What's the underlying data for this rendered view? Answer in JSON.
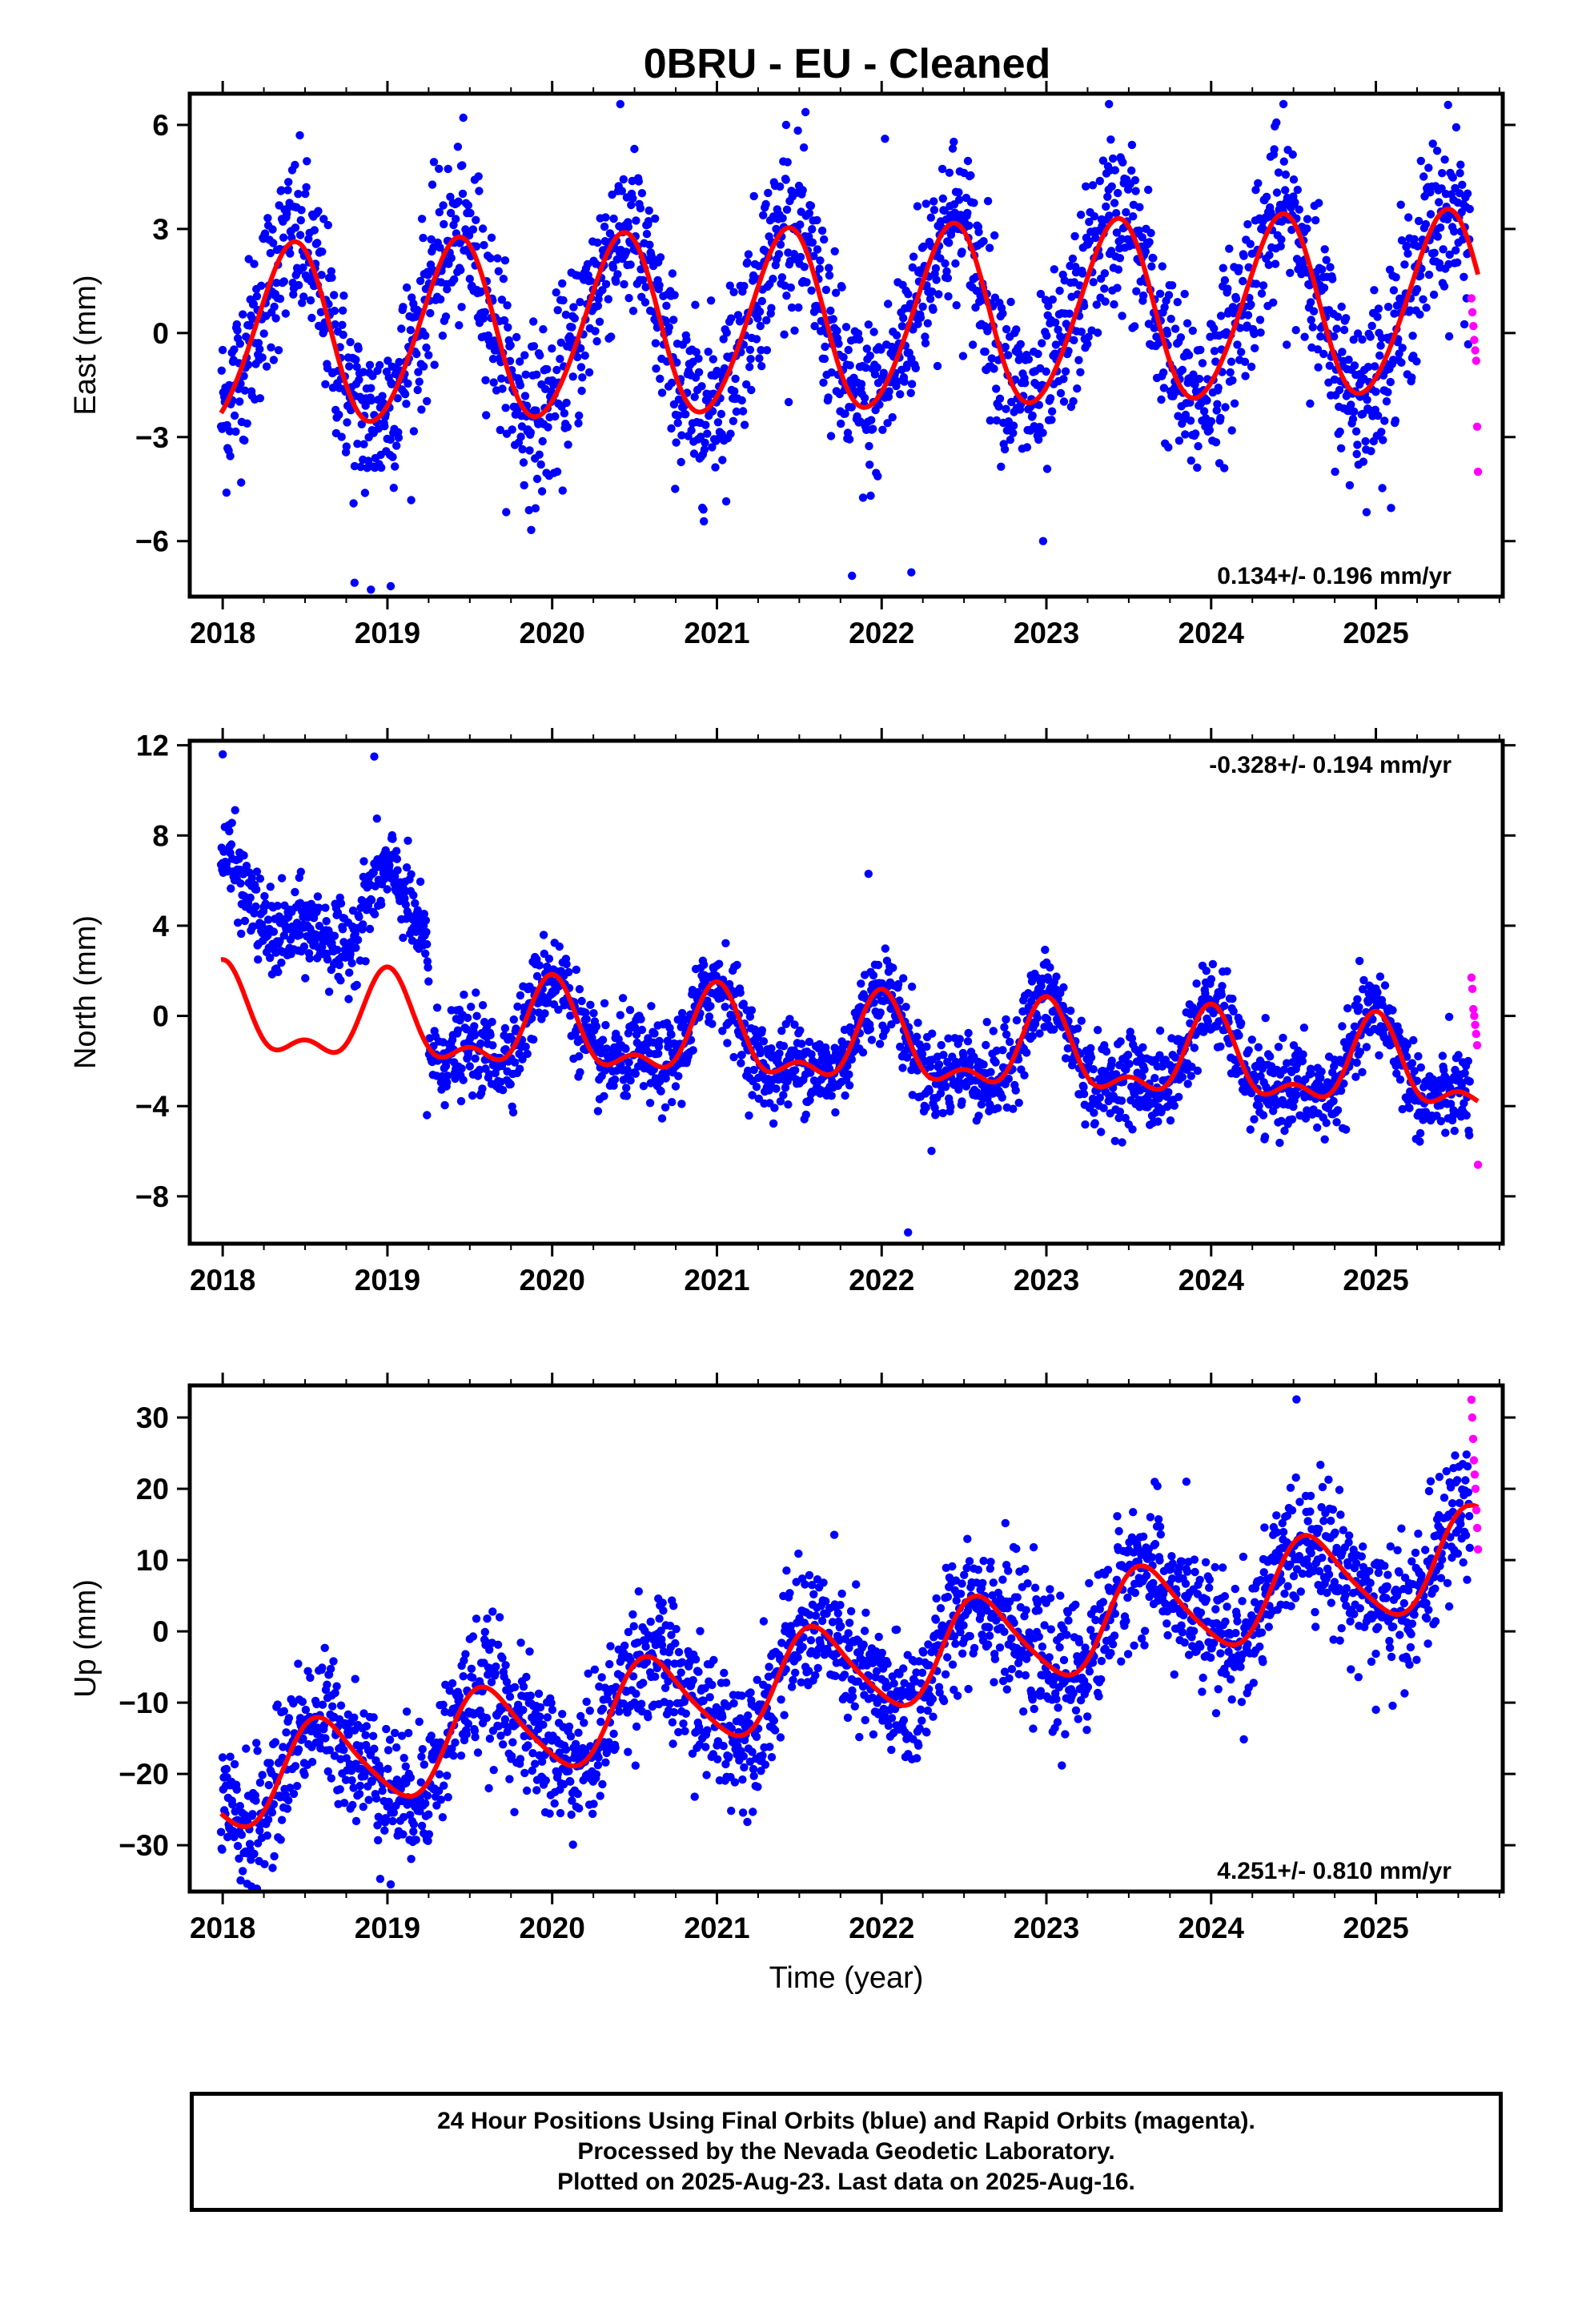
{
  "footer": {
    "line1": "24 Hour Positions Using Final Orbits (blue) and Rapid Orbits (magenta).",
    "line2": "Processed by the Nevada Geodetic Laboratory.",
    "line3": "Plotted on 2025-Aug-23. Last data on 2025-Aug-16."
  },
  "colors": {
    "final": "#0000ff",
    "rapid": "#ff00ff",
    "fit": "#ff0000",
    "frame": "#000000"
  },
  "chart_data": [
    {
      "type": "scatter",
      "title": "0BRU  - EU - Cleaned",
      "ylabel": "East (mm)",
      "xlim": [
        2017.8,
        2025.77
      ],
      "ylim": [
        -7.6,
        6.9
      ],
      "yticks": [
        -6,
        -3,
        0,
        3,
        6
      ],
      "xticks": [
        2018,
        2019,
        2020,
        2021,
        2022,
        2023,
        2024,
        2025
      ],
      "rate": "0.134+/- 0.196 mm/yr",
      "rate_position": "bottom-right",
      "model": {
        "base": -0.15,
        "trend": 0.134,
        "annual_amp": 2.6,
        "annual_peak": 0.42,
        "semi_amp": 0.2,
        "semi_peak": 0.0
      },
      "scatter": {
        "count": 2300,
        "sigma": 1.25
      },
      "offset_segments": [],
      "series": [
        {
          "name": "final",
          "x_range": [
            2017.99,
            2025.57
          ]
        },
        {
          "name": "rapid",
          "x_range": [
            2025.58,
            2025.62
          ],
          "y": [
            1.0,
            0.6,
            0.2,
            -0.2,
            -0.5,
            -0.8,
            -2.7,
            -4.0
          ]
        }
      ],
      "outliers": [
        [
          2018.8,
          -7.2
        ],
        [
          2018.9,
          -7.4
        ],
        [
          2019.02,
          -7.3
        ],
        [
          2021.82,
          -7.0
        ],
        [
          2022.18,
          -6.9
        ],
        [
          2022.02,
          5.6
        ],
        [
          2022.98,
          -6.0
        ],
        [
          2021.42,
          6.0
        ],
        [
          2023.38,
          6.6
        ]
      ],
      "grid": false
    },
    {
      "type": "scatter",
      "title": "",
      "ylabel": "North (mm)",
      "xlim": [
        2017.8,
        2025.77
      ],
      "ylim": [
        -10.1,
        12.2
      ],
      "yticks": [
        -8,
        -4,
        0,
        4,
        8,
        12
      ],
      "xticks": [
        2018,
        2019,
        2020,
        2021,
        2022,
        2023,
        2024,
        2025
      ],
      "rate": "-0.328+/- 0.194 mm/yr",
      "rate_position": "top-right",
      "model": {
        "base": -0.1,
        "trend": -0.328,
        "annual_amp": 1.7,
        "annual_peak": 0.0,
        "semi_amp": 0.9,
        "semi_peak": 0.0
      },
      "scatter": {
        "count": 2300,
        "sigma": 0.95
      },
      "offset_segments": [
        {
          "x_range": [
            2017.99,
            2018.15
          ],
          "offset": 4.6
        },
        {
          "x_range": [
            2018.15,
            2018.7
          ],
          "offset": 5.0
        },
        {
          "x_range": [
            2018.7,
            2019.25
          ],
          "offset": 4.2
        }
      ],
      "series": [
        {
          "name": "final",
          "x_range": [
            2017.99,
            2025.57
          ]
        },
        {
          "name": "rapid",
          "x_range": [
            2025.58,
            2025.62
          ],
          "y": [
            1.7,
            1.2,
            0.3,
            0.0,
            -0.4,
            -0.8,
            -1.3,
            -6.6
          ]
        }
      ],
      "outliers": [
        [
          2019.24,
          -4.4
        ],
        [
          2022.16,
          -9.6
        ],
        [
          2021.92,
          6.3
        ],
        [
          2018.0,
          11.6
        ],
        [
          2018.92,
          11.5
        ]
      ],
      "grid": false
    },
    {
      "type": "scatter",
      "title": "",
      "ylabel": "Up (mm)",
      "xlabel": "Time (year)",
      "xlim": [
        2017.8,
        2025.77
      ],
      "ylim": [
        -36.5,
        34.5
      ],
      "yticks": [
        -30,
        -20,
        -10,
        0,
        10,
        20,
        30
      ],
      "xticks": [
        2018,
        2019,
        2020,
        2021,
        2022,
        2023,
        2024,
        2025
      ],
      "rate": "4.251+/- 0.810 mm/yr",
      "rate_position": "bottom-right",
      "model": {
        "base": -21.5,
        "trend": 4.251,
        "annual_amp": 6.5,
        "annual_peak": 0.6,
        "semi_amp": 1.0,
        "semi_peak": 0.0
      },
      "scatter": {
        "count": 2300,
        "sigma": 4.6
      },
      "offset_segments": [],
      "series": [
        {
          "name": "final",
          "x_range": [
            2017.99,
            2025.57
          ]
        },
        {
          "name": "rapid",
          "x_range": [
            2025.58,
            2025.62
          ],
          "y": [
            32.5,
            30.0,
            27.0,
            24.0,
            22.0,
            20.0,
            17.0,
            14.5,
            11.5
          ]
        }
      ],
      "outliers": [
        [
          2019.02,
          -35.5
        ],
        [
          2020.05,
          -25.5
        ],
        [
          2025.0,
          -11.0
        ],
        [
          2023.85,
          21.0
        ]
      ],
      "grid": false
    }
  ]
}
